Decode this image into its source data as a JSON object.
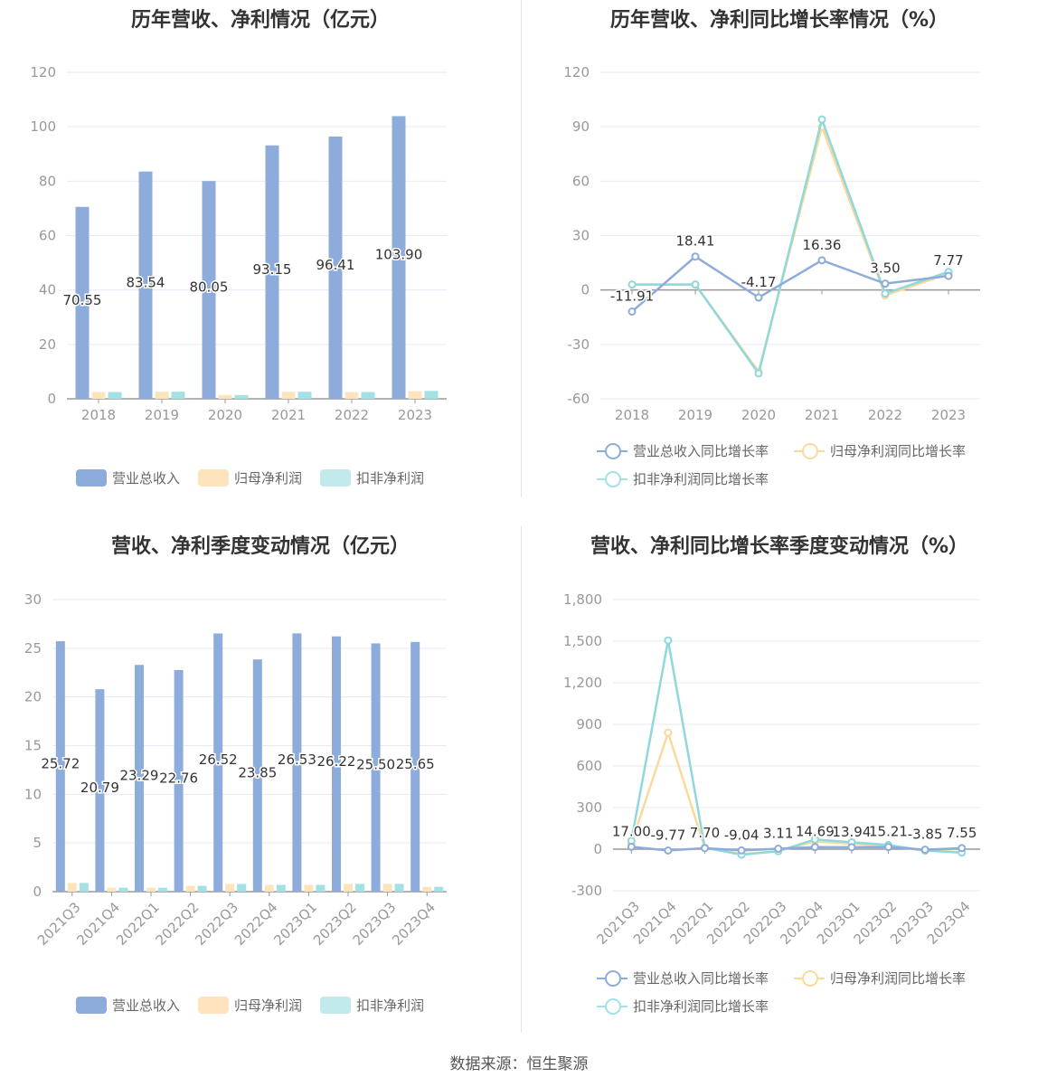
{
  "source": "数据来源：恒生聚源",
  "colors": {
    "revenue": "#8eacdb",
    "netprofit": "#fde4bd",
    "deducted": "#a4e1e4",
    "revenue_line": "#8eacdb",
    "netprofit_line": "#fcd99b",
    "deducted_line": "#8fd8dc",
    "grid": "#e6e9f2",
    "axis": "#999999"
  },
  "legend_bar": [
    "营业总收入",
    "归母净利润",
    "扣非净利润"
  ],
  "legend_line": [
    "营业总收入同比增长率",
    "归母净利润同比增长率",
    "扣非净利润同比增长率"
  ],
  "chart_data": [
    {
      "type": "bar",
      "title": "历年营收、净利情况（亿元）",
      "categories": [
        "2018",
        "2019",
        "2020",
        "2021",
        "2022",
        "2023"
      ],
      "ylim": [
        0,
        120
      ],
      "yticks": [
        0,
        20,
        40,
        60,
        80,
        100,
        120
      ],
      "series": [
        {
          "name": "营业总收入",
          "values": [
            70.55,
            83.54,
            80.05,
            93.15,
            96.41,
            103.9
          ],
          "labels": [
            "70.55",
            "83.54",
            "80.05",
            "93.15",
            "96.41",
            "103.90"
          ]
        },
        {
          "name": "归母净利润",
          "values": [
            2.5,
            2.6,
            1.4,
            2.6,
            2.5,
            2.8
          ]
        },
        {
          "name": "扣非净利润",
          "values": [
            2.5,
            2.6,
            1.4,
            2.6,
            2.5,
            2.9
          ]
        }
      ]
    },
    {
      "type": "line",
      "title": "历年营收、净利同比增长率情况（%）",
      "categories": [
        "2018",
        "2019",
        "2020",
        "2021",
        "2022",
        "2023"
      ],
      "ylim": [
        -60,
        120
      ],
      "yticks": [
        -60,
        -30,
        0,
        30,
        60,
        90,
        120
      ],
      "series": [
        {
          "name": "营业总收入同比增长率",
          "values": [
            -11.91,
            18.41,
            -4.17,
            16.36,
            3.5,
            7.77
          ],
          "labels": [
            "-11.91",
            "18.41",
            "-4.17",
            "16.36",
            "3.50",
            "7.77"
          ]
        },
        {
          "name": "归母净利润同比增长率",
          "values": [
            3,
            3,
            -45,
            90,
            -3,
            9
          ]
        },
        {
          "name": "扣非净利润同比增长率",
          "values": [
            3,
            3,
            -46,
            94,
            -2,
            10
          ]
        }
      ]
    },
    {
      "type": "bar",
      "title": "营收、净利季度变动情况（亿元）",
      "categories": [
        "2021Q3",
        "2021Q4",
        "2022Q1",
        "2022Q2",
        "2022Q3",
        "2022Q4",
        "2023Q1",
        "2023Q2",
        "2023Q3",
        "2023Q4"
      ],
      "ylim": [
        0,
        30
      ],
      "yticks": [
        0,
        5,
        10,
        15,
        20,
        25,
        30
      ],
      "series": [
        {
          "name": "营业总收入",
          "values": [
            25.72,
            20.79,
            23.29,
            22.76,
            26.52,
            23.85,
            26.53,
            26.22,
            25.5,
            25.65
          ],
          "labels": [
            "25.72",
            "20.79",
            "23.29",
            "22.76",
            "26.52",
            "23.85",
            "26.53",
            "26.22",
            "25.50",
            "25.65"
          ]
        },
        {
          "name": "归母净利润",
          "values": [
            0.9,
            0.4,
            0.4,
            0.6,
            0.8,
            0.7,
            0.7,
            0.8,
            0.8,
            0.5
          ]
        },
        {
          "name": "扣非净利润",
          "values": [
            0.9,
            0.4,
            0.4,
            0.6,
            0.8,
            0.7,
            0.7,
            0.8,
            0.8,
            0.5
          ]
        }
      ]
    },
    {
      "type": "line",
      "title": "营收、净利同比增长率季度变动情况（%）",
      "categories": [
        "2021Q3",
        "2021Q4",
        "2022Q1",
        "2022Q2",
        "2022Q3",
        "2022Q4",
        "2023Q1",
        "2023Q2",
        "2023Q3",
        "2023Q4"
      ],
      "ylim": [
        -300,
        1800
      ],
      "yticks": [
        -300,
        0,
        300,
        600,
        900,
        1200,
        1500,
        1800
      ],
      "ytick_labels": [
        "-300",
        "0",
        "300",
        "600",
        "900",
        "1,200",
        "1,500",
        "1,800"
      ],
      "series": [
        {
          "name": "营业总收入同比增长率",
          "values": [
            17.0,
            -9.77,
            7.7,
            -9.04,
            3.11,
            14.69,
            13.94,
            15.21,
            -3.85,
            7.55
          ],
          "labels": [
            "17.00",
            "-9.77",
            "7.70",
            "-9.04",
            "3.11",
            "14.69",
            "13.94",
            "15.21",
            "-3.85",
            "7.55"
          ]
        },
        {
          "name": "归母净利润同比增长率",
          "values": [
            40,
            840,
            10,
            -35,
            -15,
            55,
            40,
            20,
            -10,
            -20
          ]
        },
        {
          "name": "扣非净利润同比增长率",
          "values": [
            60,
            1505,
            10,
            -40,
            -15,
            70,
            50,
            30,
            -10,
            -25
          ]
        }
      ]
    }
  ]
}
